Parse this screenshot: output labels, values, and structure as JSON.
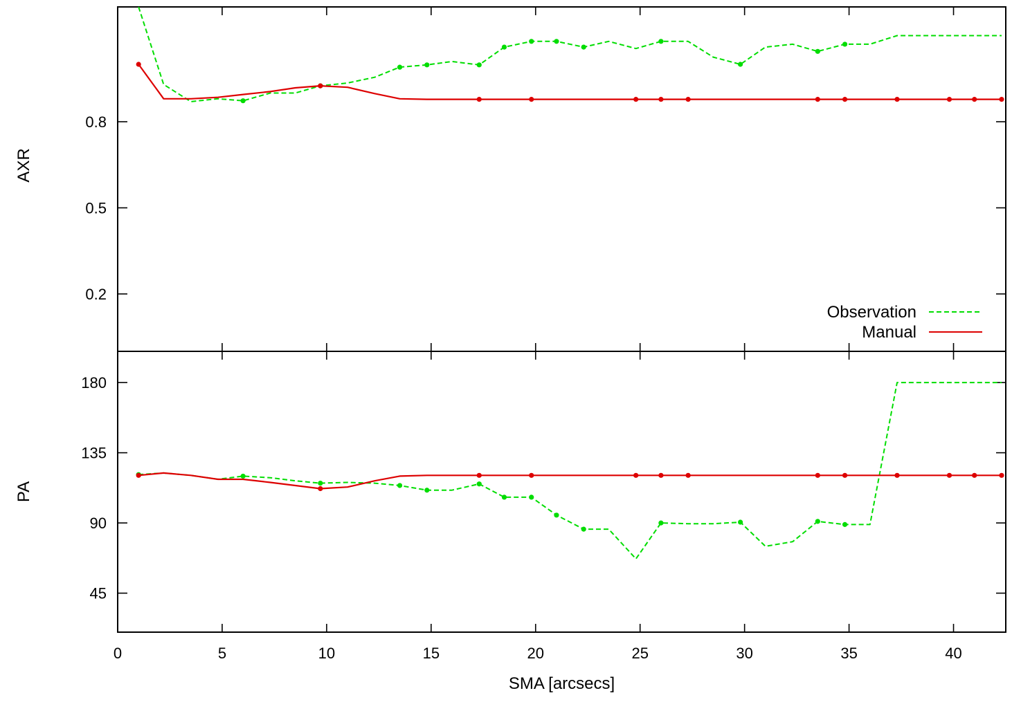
{
  "chart_data": [
    {
      "type": "line",
      "ylabel": "AXR",
      "xlim": [
        0,
        42.5
      ],
      "ylim": [
        0,
        1.2
      ],
      "yticks": [
        {
          "value": 0.2,
          "label": "0.2"
        },
        {
          "value": 0.5,
          "label": "0.5"
        },
        {
          "value": 0.8,
          "label": "0.8"
        }
      ],
      "legend": "bottom-right",
      "series": [
        {
          "name": "Observation",
          "color": "#00dd00",
          "dash": true,
          "x": [
            1.0,
            2.2,
            3.5,
            4.8,
            6.0,
            7.3,
            8.5,
            9.7,
            11.0,
            12.3,
            13.5,
            14.8,
            16.0,
            17.3,
            18.5,
            19.8,
            21.0,
            22.3,
            23.5,
            24.8,
            26.0,
            27.3,
            28.5,
            29.8,
            31.0,
            32.3,
            33.5,
            34.8,
            36.0,
            37.3,
            38.5,
            39.8,
            41.0,
            42.3
          ],
          "values": [
            1.2,
            0.93,
            0.87,
            0.88,
            0.873,
            0.9,
            0.9,
            0.925,
            0.935,
            0.955,
            0.99,
            0.998,
            1.01,
            0.998,
            1.06,
            1.08,
            1.08,
            1.06,
            1.08,
            1.055,
            1.08,
            1.08,
            1.025,
            1.0,
            1.06,
            1.07,
            1.045,
            1.07,
            1.07,
            1.1,
            1.1,
            1.1,
            1.1,
            1.1
          ],
          "markers": [
            false,
            false,
            false,
            false,
            true,
            false,
            false,
            true,
            false,
            false,
            true,
            true,
            false,
            true,
            true,
            true,
            true,
            true,
            false,
            false,
            true,
            false,
            false,
            true,
            false,
            false,
            true,
            true,
            false,
            false,
            false,
            false,
            false,
            false
          ]
        },
        {
          "name": "Manual",
          "color": "#dd0000",
          "dash": false,
          "x": [
            1.0,
            2.2,
            3.5,
            4.8,
            6.0,
            7.3,
            8.5,
            9.7,
            11.0,
            12.3,
            13.5,
            14.8,
            16.0,
            17.3,
            18.5,
            19.8,
            21.0,
            22.3,
            23.5,
            24.8,
            26.0,
            27.3,
            28.5,
            29.8,
            31.0,
            32.3,
            33.5,
            34.8,
            36.0,
            37.3,
            38.5,
            39.8,
            41.0,
            42.3
          ],
          "values": [
            1.0,
            0.88,
            0.88,
            0.885,
            0.895,
            0.905,
            0.918,
            0.925,
            0.92,
            0.898,
            0.88,
            0.878,
            0.878,
            0.878,
            0.878,
            0.878,
            0.878,
            0.878,
            0.878,
            0.878,
            0.878,
            0.878,
            0.878,
            0.878,
            0.878,
            0.878,
            0.878,
            0.878,
            0.878,
            0.878,
            0.878,
            0.878,
            0.878,
            0.878
          ],
          "markers": [
            true,
            false,
            false,
            false,
            false,
            false,
            false,
            true,
            false,
            false,
            false,
            false,
            false,
            true,
            false,
            true,
            false,
            false,
            false,
            true,
            true,
            true,
            false,
            false,
            false,
            false,
            true,
            true,
            false,
            true,
            false,
            true,
            true,
            true
          ]
        }
      ]
    },
    {
      "type": "line",
      "ylabel": "PA",
      "xlabel": "SMA [arcsecs]",
      "xlim": [
        0,
        42.5
      ],
      "ylim": [
        20,
        200
      ],
      "yticks": [
        {
          "value": 45,
          "label": "45"
        },
        {
          "value": 90,
          "label": "90"
        },
        {
          "value": 135,
          "label": "135"
        },
        {
          "value": 180,
          "label": "180"
        }
      ],
      "xticks": [
        {
          "value": 0,
          "label": "0"
        },
        {
          "value": 5,
          "label": "5"
        },
        {
          "value": 10,
          "label": "10"
        },
        {
          "value": 15,
          "label": "15"
        },
        {
          "value": 20,
          "label": "20"
        },
        {
          "value": 25,
          "label": "25"
        },
        {
          "value": 30,
          "label": "30"
        },
        {
          "value": 35,
          "label": "35"
        },
        {
          "value": 40,
          "label": "40"
        }
      ],
      "series": [
        {
          "name": "Observation",
          "color": "#00dd00",
          "dash": true,
          "x": [
            1.0,
            2.2,
            3.5,
            4.8,
            6.0,
            7.3,
            8.5,
            9.7,
            11.0,
            12.3,
            13.5,
            14.8,
            16.0,
            17.3,
            18.5,
            19.8,
            21.0,
            22.3,
            23.5,
            24.8,
            26.0,
            27.3,
            28.5,
            29.8,
            31.0,
            32.3,
            33.5,
            34.8,
            36.0,
            37.3,
            38.5,
            39.8,
            41.0,
            42.3
          ],
          "values": [
            121,
            122,
            120.5,
            118,
            120,
            119,
            117,
            115.5,
            116,
            115.5,
            114,
            111,
            111,
            115,
            106.5,
            106.5,
            95,
            86,
            86,
            67,
            90,
            89.5,
            89.5,
            90.5,
            75,
            78,
            91,
            89,
            89,
            180,
            180,
            180,
            180,
            180
          ],
          "markers": [
            true,
            false,
            false,
            false,
            true,
            false,
            false,
            true,
            false,
            false,
            true,
            true,
            false,
            true,
            true,
            true,
            true,
            true,
            false,
            false,
            true,
            false,
            false,
            true,
            false,
            false,
            true,
            true,
            false,
            false,
            false,
            false,
            false,
            false
          ]
        },
        {
          "name": "Manual",
          "color": "#dd0000",
          "dash": false,
          "x": [
            1.0,
            2.2,
            3.5,
            4.8,
            6.0,
            7.3,
            8.5,
            9.7,
            11.0,
            12.3,
            13.5,
            14.8,
            16.0,
            17.3,
            18.5,
            19.8,
            21.0,
            22.3,
            23.5,
            24.8,
            26.0,
            27.3,
            28.5,
            29.8,
            31.0,
            32.3,
            33.5,
            34.8,
            36.0,
            37.3,
            38.5,
            39.8,
            41.0,
            42.3
          ],
          "values": [
            120.5,
            122,
            120.5,
            118,
            118,
            116,
            114,
            112,
            113,
            117,
            120,
            120.5,
            120.5,
            120.5,
            120.5,
            120.5,
            120.5,
            120.5,
            120.5,
            120.5,
            120.5,
            120.5,
            120.5,
            120.5,
            120.5,
            120.5,
            120.5,
            120.5,
            120.5,
            120.5,
            120.5,
            120.5,
            120.5,
            120.5
          ],
          "markers": [
            true,
            false,
            false,
            false,
            false,
            false,
            false,
            true,
            false,
            false,
            false,
            false,
            false,
            true,
            false,
            true,
            false,
            false,
            false,
            true,
            true,
            true,
            false,
            false,
            false,
            false,
            true,
            true,
            false,
            true,
            false,
            true,
            true,
            true
          ]
        }
      ]
    }
  ]
}
